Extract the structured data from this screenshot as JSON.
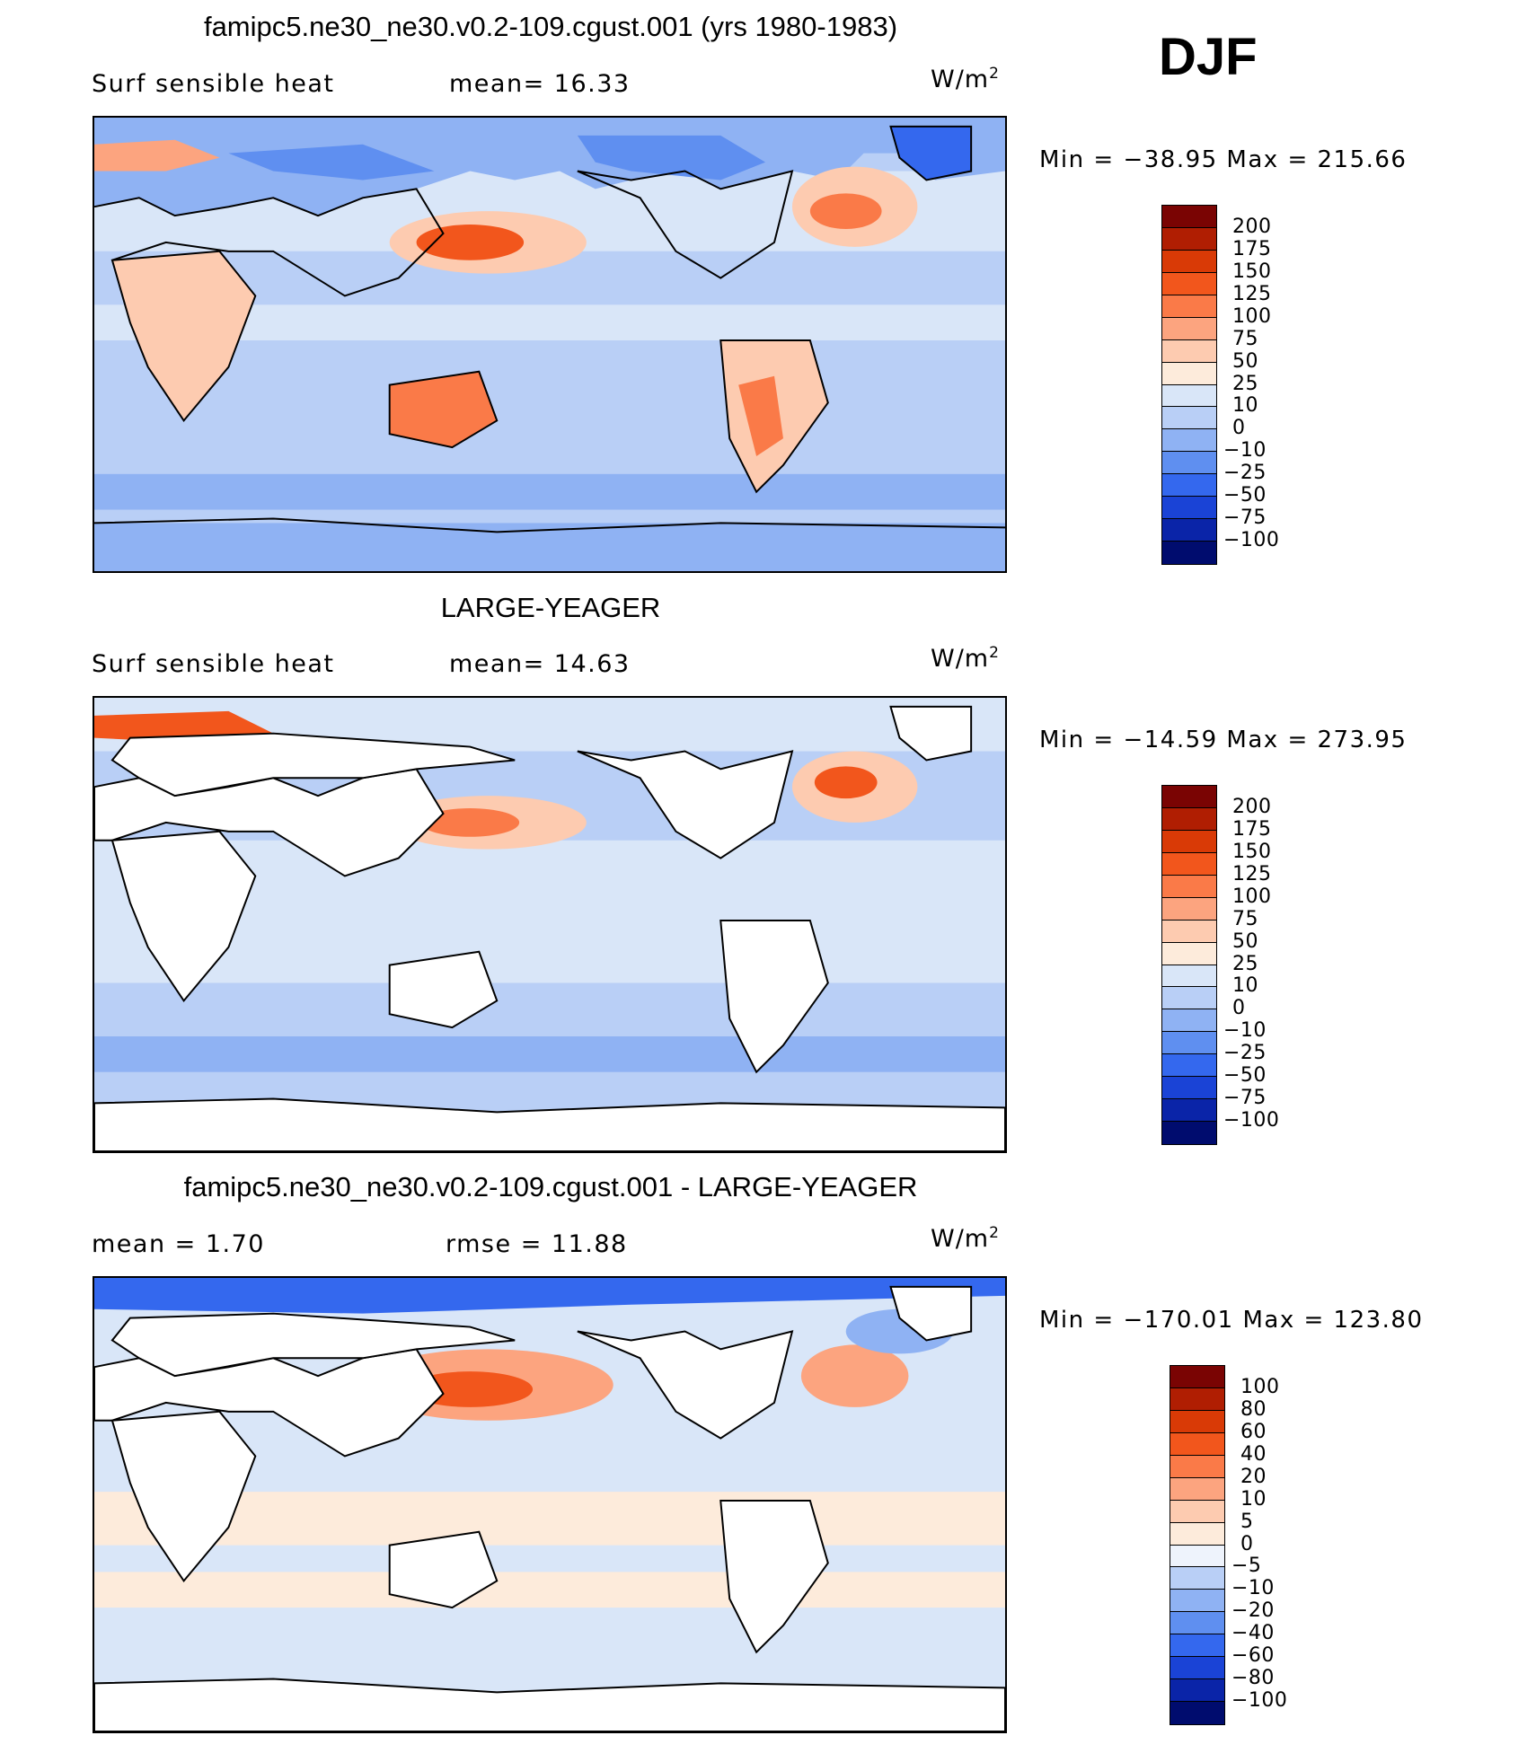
{
  "season_label": "DJF",
  "chart_data": [
    {
      "type": "heatmap",
      "title": "famipc5.ne30_ne30.v0.2-109.cgust.001 (yrs 1980-1983)",
      "left_label": "Surf  sensible  heat",
      "center_label": "mean=   16.33",
      "units_text": "W/m",
      "units_exp": "2",
      "min_text": "Min  =  −38.95  Max  =  215.66",
      "mean": 16.33,
      "min": -38.95,
      "max": 215.66,
      "colorbar": {
        "levels": [
          "200",
          "175",
          "150",
          "125",
          "100",
          "75",
          "50",
          "25",
          "10",
          "0",
          "−10",
          "−25",
          "−50",
          "−75",
          "−100"
        ],
        "colors": [
          "#7a0403",
          "#b01e02",
          "#d93a06",
          "#f2561c",
          "#fa7a48",
          "#fca47f",
          "#fdcbb0",
          "#fdebdb",
          "#d9e6f8",
          "#b9cff6",
          "#8fb2f3",
          "#5f8ff0",
          "#3468ee",
          "#1a43d6",
          "#0a24a8",
          "#000c6e"
        ]
      }
    },
    {
      "type": "heatmap",
      "title": "LARGE-YEAGER",
      "left_label": "Surf  sensible  heat",
      "center_label": "mean=   14.63",
      "units_text": "W/m",
      "units_exp": "2",
      "min_text": "Min  =  −14.59  Max  =  273.95",
      "mean": 14.63,
      "min": -14.59,
      "max": 273.95,
      "colorbar": {
        "levels": [
          "200",
          "175",
          "150",
          "125",
          "100",
          "75",
          "50",
          "25",
          "10",
          "0",
          "−10",
          "−25",
          "−50",
          "−75",
          "−100"
        ],
        "colors": [
          "#7a0403",
          "#b01e02",
          "#d93a06",
          "#f2561c",
          "#fa7a48",
          "#fca47f",
          "#fdcbb0",
          "#fdebdb",
          "#d9e6f8",
          "#b9cff6",
          "#8fb2f3",
          "#5f8ff0",
          "#3468ee",
          "#1a43d6",
          "#0a24a8",
          "#000c6e"
        ]
      }
    },
    {
      "type": "heatmap",
      "title": "famipc5.ne30_ne30.v0.2-109.cgust.001 - LARGE-YEAGER",
      "left_label": "mean  =      1.70",
      "center_label": "rmse  =    11.88",
      "units_text": "W/m",
      "units_exp": "2",
      "min_text": "Min  =  −170.01  Max  =  123.80",
      "mean": 1.7,
      "rmse": 11.88,
      "min": -170.01,
      "max": 123.8,
      "colorbar": {
        "levels": [
          "100",
          "80",
          "60",
          "40",
          "20",
          "10",
          "5",
          "0",
          "−5",
          "−10",
          "−20",
          "−40",
          "−60",
          "−80",
          "−100"
        ],
        "colors": [
          "#7a0403",
          "#b01e02",
          "#d93a06",
          "#f2561c",
          "#fa7a48",
          "#fca47f",
          "#fdcbb0",
          "#fdebdb",
          "#eef3fc",
          "#b9cff6",
          "#8fb2f3",
          "#5f8ff0",
          "#3468ee",
          "#1a43d6",
          "#0a24a8",
          "#000c6e"
        ]
      }
    }
  ]
}
